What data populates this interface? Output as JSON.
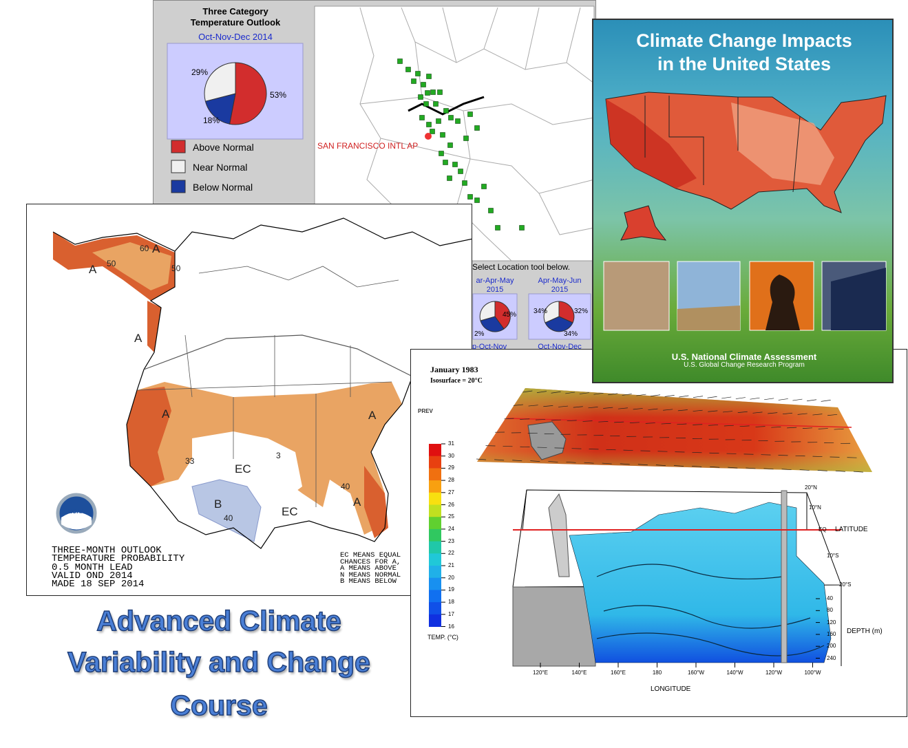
{
  "outlook_panel": {
    "title_lines": [
      "Three Category",
      "Temperature Outlook"
    ],
    "period": "Oct-Nov-Dec 2014",
    "pie": {
      "values": [
        53,
        18,
        29
      ],
      "value_labels": [
        "53%",
        "18%",
        "29%"
      ],
      "colors": [
        "#d22d2d",
        "#1a3aa0",
        "#f0f0f0"
      ]
    },
    "legend": [
      {
        "label": "Above Normal",
        "color": "#d22d2d"
      },
      {
        "label": "Near Normal",
        "color": "#f0f0f0"
      },
      {
        "label": "Below Normal",
        "color": "#1a3aa0"
      }
    ],
    "station": "SAN FRANCISCO INTL AP",
    "tool_hint": "Select Location tool below.",
    "mini_pies": [
      {
        "period": "ar-Apr-May",
        "year": "2015",
        "labels": [
          "45%",
          "2%"
        ]
      },
      {
        "period": "Apr-May-Jun",
        "year": "2015",
        "labels": [
          "34%",
          "32%",
          "34%"
        ]
      }
    ],
    "next_periods": [
      "p-Oct-Nov",
      "Oct-Nov-Dec"
    ]
  },
  "noaa_map": {
    "map_labels": [
      "A",
      "50",
      "60",
      "A",
      "50",
      "A",
      "A",
      "33",
      "3",
      "EC",
      "B",
      "40",
      "EC",
      "40",
      "A",
      "A"
    ],
    "logo": "NOAA",
    "caption_lines": [
      "THREE-MONTH OUTLOOK",
      "TEMPERATURE PROBABILITY",
      "0.5 MONTH LEAD",
      "VALID OND 2014",
      "MADE 18 SEP 2014"
    ],
    "key_lines": [
      "EC MEANS EQUAL",
      "CHANCES FOR A,",
      "A MEANS ABOVE",
      "N MEANS NORMAL",
      "B MEANS BELOW"
    ]
  },
  "cover": {
    "title_lines": [
      "Climate Change Impacts",
      "in the United States"
    ],
    "footer": "U.S. National Climate Assessment",
    "subfooter": "U.S. Global Change Research Program"
  },
  "ocean_plot": {
    "title": "January 1983",
    "subtitle": "Isosurface = 20°C",
    "prev": "PREV",
    "colorbar_ticks": [
      31,
      30,
      29,
      28,
      27,
      26,
      25,
      24,
      23,
      22,
      21,
      20,
      19,
      18,
      17,
      16
    ],
    "colorbar_label": "TEMP. (°C)",
    "lat_ticks": [
      "20°N",
      "10°N",
      "EQ",
      "10°S",
      "20°S"
    ],
    "lat_label": "LATITUDE",
    "depth_ticks": [
      40,
      80,
      120,
      160,
      200,
      240
    ],
    "depth_label": "DEPTH (m)",
    "lon_ticks": [
      "120°E",
      "140°E",
      "160°E",
      "180",
      "160°W",
      "140°W",
      "120°W",
      "100°W"
    ],
    "lon_label": "LONGITUDE"
  },
  "course_title": [
    "Advanced Climate",
    "Variability and Change",
    "Course"
  ]
}
